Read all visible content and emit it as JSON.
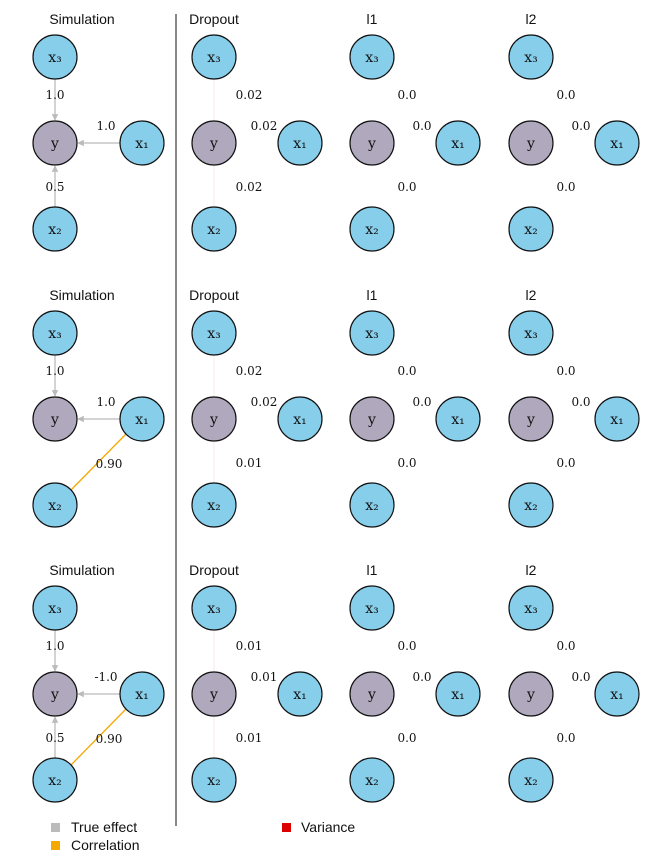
{
  "colors": {
    "predictor_node": "#87ceeb",
    "target_node": "#b0a8bc",
    "node_stroke": "#111111",
    "true_effect": "#bbbbbb",
    "correlation": "#f5a800",
    "variance": "#dd0000",
    "divider": "#111111"
  },
  "nodes": {
    "y": "y",
    "x1": "x₁",
    "x2": "x₂",
    "x3": "x₃"
  },
  "column_titles": [
    "Simulation",
    "Dropout",
    "l1",
    "l2"
  ],
  "legend": {
    "true_effect": "True effect",
    "correlation": "Correlation",
    "variance": "Variance"
  },
  "rows": [
    {
      "simulation": {
        "x3": "1.0",
        "x1": "1.0",
        "x2": "0.5",
        "corr_x1_x2": ""
      },
      "dropout": {
        "x3": "0.02",
        "x1": "0.02",
        "x2": "0.02"
      },
      "l1": {
        "x3": "0.0",
        "x1": "0.0",
        "x2": "0.0"
      },
      "l2": {
        "x3": "0.0",
        "x1": "0.0",
        "x2": "0.0"
      }
    },
    {
      "simulation": {
        "x3": "1.0",
        "x1": "1.0",
        "x2": "",
        "corr_x1_x2": "0.90"
      },
      "dropout": {
        "x3": "0.02",
        "x1": "0.02",
        "x2": "0.01"
      },
      "l1": {
        "x3": "0.0",
        "x1": "0.0",
        "x2": "0.0"
      },
      "l2": {
        "x3": "0.0",
        "x1": "0.0",
        "x2": "0.0"
      }
    },
    {
      "simulation": {
        "x3": "1.0",
        "x1": "-1.0",
        "x2": "0.5",
        "corr_x1_x2": "0.90"
      },
      "dropout": {
        "x3": "0.01",
        "x1": "0.01",
        "x2": "0.01"
      },
      "l1": {
        "x3": "0.0",
        "x1": "0.0",
        "x2": "0.0"
      },
      "l2": {
        "x3": "0.0",
        "x1": "0.0",
        "x2": "0.0"
      }
    }
  ]
}
